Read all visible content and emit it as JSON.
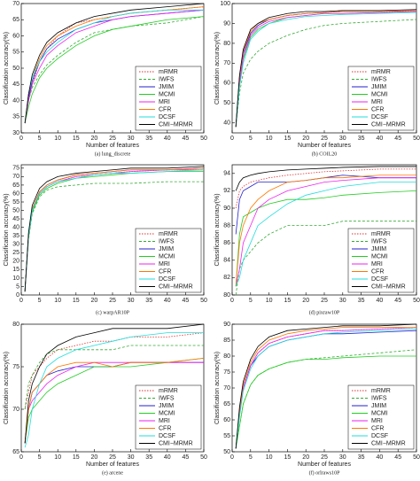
{
  "chart_data": [
    {
      "type": "line",
      "title": "(a) lung_discrete",
      "xlabel": "Number of features",
      "ylabel": "Classification accuracy(%)",
      "legend": "lower right",
      "x": [
        1,
        2,
        3,
        5,
        7,
        10,
        15,
        20,
        25,
        30,
        40,
        50
      ],
      "xlim": [
        0,
        50
      ],
      "xticks": [
        0,
        5,
        10,
        15,
        20,
        25,
        30,
        35,
        40,
        45,
        50
      ],
      "ylim": [
        30,
        70
      ],
      "yticks": [
        30,
        35,
        40,
        45,
        50,
        55,
        60,
        65,
        70
      ],
      "series": [
        {
          "name": "mRMR",
          "color": "#e03030",
          "values": [
            33,
            40,
            45,
            52,
            56,
            60,
            64,
            65,
            66,
            67,
            68,
            69
          ]
        },
        {
          "name": "IWFS",
          "color": "#33aa33",
          "values": [
            33,
            40,
            44,
            48,
            51,
            54,
            58,
            61,
            62,
            63,
            64,
            66
          ]
        },
        {
          "name": "JMIM",
          "color": "#2222cc",
          "values": [
            33,
            41,
            46,
            52,
            56,
            59,
            62,
            64,
            65,
            66,
            67,
            68
          ]
        },
        {
          "name": "MCMI",
          "color": "#22cc22",
          "values": [
            33,
            38,
            42,
            47,
            50,
            53,
            57,
            60,
            62,
            63,
            65,
            66
          ]
        },
        {
          "name": "MRI",
          "color": "#ee22ee",
          "values": [
            33,
            40,
            45,
            50,
            54,
            57,
            61,
            63,
            65,
            66,
            67,
            68
          ]
        },
        {
          "name": "CFR",
          "color": "#ff7700",
          "values": [
            33,
            42,
            47,
            53,
            57,
            60,
            63,
            65,
            66,
            67,
            68,
            69
          ]
        },
        {
          "name": "DCSF",
          "color": "#22dddd",
          "values": [
            33,
            42,
            47,
            52,
            55,
            58,
            62,
            64,
            66,
            67,
            68,
            68
          ]
        },
        {
          "name": "CMI−MRMR",
          "color": "#000000",
          "values": [
            33,
            42,
            48,
            54,
            58,
            61,
            64,
            66,
            67,
            68,
            69,
            70
          ]
        }
      ]
    },
    {
      "type": "line",
      "title": "(b) COIL20",
      "xlabel": "Number of features",
      "ylabel": "Classification accuracy(%)",
      "legend": "lower right",
      "x": [
        1,
        2,
        3,
        5,
        7,
        10,
        15,
        20,
        25,
        30,
        40,
        50
      ],
      "xlim": [
        0,
        50
      ],
      "xticks": [
        0,
        5,
        10,
        15,
        20,
        25,
        30,
        35,
        40,
        45,
        50
      ],
      "ylim": [
        35,
        100
      ],
      "yticks": [
        40,
        50,
        60,
        70,
        80,
        90,
        100
      ],
      "series": [
        {
          "name": "mRMR",
          "color": "#e03030",
          "values": [
            38,
            62,
            75,
            85,
            89,
            92,
            94,
            95,
            95.5,
            96,
            96,
            96
          ]
        },
        {
          "name": "IWFS",
          "color": "#33aa33",
          "values": [
            38,
            55,
            65,
            72,
            76,
            80,
            84,
            87,
            89,
            90,
            91,
            92
          ]
        },
        {
          "name": "JMIM",
          "color": "#2222cc",
          "values": [
            38,
            63,
            75,
            85,
            89,
            92,
            94,
            95,
            95.5,
            96,
            96,
            96.5
          ]
        },
        {
          "name": "MCMI",
          "color": "#22cc22",
          "values": [
            38,
            60,
            72,
            83,
            87,
            90,
            93,
            94,
            95,
            95,
            95.5,
            96
          ]
        },
        {
          "name": "MRI",
          "color": "#ee22ee",
          "values": [
            38,
            60,
            73,
            84,
            88,
            91,
            93,
            94,
            95,
            95,
            95.5,
            96
          ]
        },
        {
          "name": "CFR",
          "color": "#ff7700",
          "values": [
            38,
            63,
            76,
            86,
            90,
            92,
            94,
            95,
            95.5,
            96,
            96,
            96.5
          ]
        },
        {
          "name": "DCSF",
          "color": "#22dddd",
          "values": [
            38,
            58,
            70,
            82,
            86,
            90,
            92,
            93.5,
            94,
            94.5,
            95,
            95.5
          ]
        },
        {
          "name": "CMI−MRMR",
          "color": "#000000",
          "values": [
            38,
            64,
            77,
            87,
            90,
            93,
            95,
            96,
            96,
            96.5,
            96.5,
            97
          ]
        }
      ]
    },
    {
      "type": "line",
      "title": "(c) warpAR10P",
      "ylabel": "Classification accuracy(%)",
      "legend": "lower right",
      "x": [
        1,
        2,
        3,
        5,
        7,
        10,
        15,
        20,
        25,
        30,
        40,
        50
      ],
      "xlim": [
        0,
        50
      ],
      "xticks": [
        0,
        5,
        10,
        15,
        20,
        25,
        30,
        35,
        40,
        45,
        50
      ],
      "ylim": [
        0,
        77
      ],
      "yticks": [
        0,
        5,
        10,
        15,
        20,
        25,
        30,
        35,
        40,
        45,
        50,
        55,
        60,
        65,
        70,
        75
      ],
      "series": [
        {
          "name": "mRMR",
          "color": "#e03030",
          "values": [
            2,
            35,
            50,
            60,
            64,
            67,
            70,
            71,
            72,
            73,
            74,
            74
          ]
        },
        {
          "name": "IWFS",
          "color": "#33aa33",
          "values": [
            2,
            33,
            48,
            58,
            62,
            64,
            65,
            66,
            66,
            66,
            67,
            67
          ]
        },
        {
          "name": "JMIM",
          "color": "#2222cc",
          "values": [
            2,
            36,
            51,
            61,
            65,
            68,
            71,
            72,
            73,
            74,
            74,
            75
          ]
        },
        {
          "name": "MCMI",
          "color": "#22cc22",
          "values": [
            2,
            34,
            49,
            59,
            63,
            66,
            69,
            70,
            71,
            72,
            73,
            73
          ]
        },
        {
          "name": "MRI",
          "color": "#ee22ee",
          "values": [
            2,
            35,
            50,
            60,
            64,
            67,
            70,
            71,
            72,
            73,
            74,
            74
          ]
        },
        {
          "name": "CFR",
          "color": "#ff7700",
          "values": [
            2,
            36,
            51,
            61,
            65,
            68,
            71,
            72,
            73,
            74,
            74,
            75
          ]
        },
        {
          "name": "DCSF",
          "color": "#22dddd",
          "values": [
            2,
            35,
            50,
            60,
            64,
            67,
            69,
            71,
            72,
            72,
            73,
            74
          ]
        },
        {
          "name": "CMI−MRMR",
          "color": "#000000",
          "values": [
            2,
            37,
            53,
            63,
            67,
            70,
            72,
            73,
            74,
            75,
            75,
            76
          ]
        }
      ]
    },
    {
      "type": "line",
      "title": "(d) pixraw10P",
      "ylabel": "Classification accuracy(%)",
      "legend": "lower right",
      "x": [
        1,
        2,
        3,
        5,
        7,
        10,
        15,
        20,
        25,
        30,
        40,
        50
      ],
      "xlim": [
        0,
        50
      ],
      "xticks": [
        0,
        5,
        10,
        15,
        20,
        25,
        30,
        35,
        40,
        45,
        50
      ],
      "ylim": [
        80,
        95
      ],
      "yticks": [
        80,
        82,
        84,
        86,
        88,
        90,
        92,
        94
      ],
      "series": [
        {
          "name": "mRMR",
          "color": "#e03030",
          "values": [
            90,
            92,
            92.5,
            93,
            93.2,
            93.5,
            93.8,
            94,
            94.2,
            94.3,
            94.5,
            94.5
          ]
        },
        {
          "name": "IWFS",
          "color": "#33aa33",
          "values": [
            80,
            83,
            84,
            85,
            86,
            87,
            88,
            88,
            88,
            88.5,
            88.5,
            88.5
          ]
        },
        {
          "name": "JMIM",
          "color": "#2222cc",
          "values": [
            87,
            91,
            92,
            92.5,
            93,
            93,
            93,
            93.2,
            93.5,
            93.8,
            93.5,
            93.5
          ]
        },
        {
          "name": "MCMI",
          "color": "#22cc22",
          "values": [
            81,
            87,
            89,
            89.5,
            90,
            90.5,
            91,
            91,
            91.2,
            91.5,
            91.8,
            92
          ]
        },
        {
          "name": "MRI",
          "color": "#ee22ee",
          "values": [
            81,
            83,
            86,
            88,
            90,
            91,
            92,
            92.5,
            93,
            93.2,
            93.5,
            93.5
          ]
        },
        {
          "name": "CFR",
          "color": "#ff7700",
          "values": [
            81,
            86,
            88,
            90,
            91,
            92,
            93,
            93.2,
            93.5,
            93.5,
            93.8,
            93.8
          ]
        },
        {
          "name": "DCSF",
          "color": "#22dddd",
          "values": [
            81,
            82,
            84,
            86,
            88,
            89,
            90.5,
            91.5,
            92,
            92.5,
            93,
            93
          ]
        },
        {
          "name": "CMI−MRMR",
          "color": "#000000",
          "values": [
            92,
            93,
            93.5,
            93.8,
            94,
            94.2,
            94.4,
            94.5,
            94.6,
            94.7,
            94.8,
            94.8
          ]
        }
      ]
    },
    {
      "type": "line",
      "title": "(e) arcene",
      "xlabel": "Number of features",
      "ylabel": "Classification accuracy(%)",
      "legend": "lower right",
      "x": [
        1,
        2,
        3,
        5,
        7,
        10,
        15,
        20,
        25,
        30,
        40,
        50
      ],
      "xlim": [
        0,
        50
      ],
      "xticks": [
        0,
        5,
        10,
        15,
        20,
        25,
        30,
        35,
        40,
        45,
        50
      ],
      "ylim": [
        65,
        80
      ],
      "yticks": [
        65,
        70,
        75,
        80
      ],
      "series": [
        {
          "name": "mRMR",
          "color": "#e03030",
          "values": [
            70,
            72,
            74,
            75,
            76,
            77,
            77.5,
            78,
            78,
            78.5,
            78.5,
            79
          ]
        },
        {
          "name": "IWFS",
          "color": "#33aa33",
          "values": [
            70,
            73,
            74,
            75.5,
            76.5,
            77,
            77,
            77,
            77,
            77.5,
            77.5,
            77.5
          ]
        },
        {
          "name": "JMIM",
          "color": "#2222cc",
          "values": [
            66,
            70,
            72,
            73,
            74,
            74.5,
            75,
            75,
            75,
            75.5,
            75.5,
            75.5
          ]
        },
        {
          "name": "MCMI",
          "color": "#22cc22",
          "values": [
            66,
            69,
            70,
            71,
            72,
            73,
            74,
            75,
            75,
            75,
            75.5,
            76
          ]
        },
        {
          "name": "MRI",
          "color": "#ee22ee",
          "values": [
            66,
            70,
            71,
            72,
            73,
            74,
            75,
            75.5,
            75.5,
            75.5,
            75.5,
            75.5
          ]
        },
        {
          "name": "CFR",
          "color": "#ff7700",
          "values": [
            66,
            70,
            72,
            73,
            74,
            75,
            75.5,
            75.5,
            75,
            75.5,
            75.5,
            76
          ]
        },
        {
          "name": "DCSF",
          "color": "#22dddd",
          "values": [
            65.5,
            67,
            70,
            73,
            75,
            76,
            77,
            77.5,
            78,
            78.5,
            79,
            79
          ]
        },
        {
          "name": "CMI−MRMR",
          "color": "#000000",
          "values": [
            66,
            71,
            73,
            75,
            76.5,
            77.5,
            78.5,
            79,
            79.5,
            79.5,
            79.5,
            80
          ]
        }
      ]
    },
    {
      "type": "line",
      "title": "(f) orlraws10P",
      "xlabel": "Number of features",
      "ylabel": "Classification accuracy(%)",
      "legend": "lower right",
      "x": [
        1,
        2,
        3,
        5,
        7,
        10,
        15,
        20,
        25,
        30,
        40,
        50
      ],
      "xlim": [
        0,
        50
      ],
      "xticks": [
        0,
        5,
        10,
        15,
        20,
        25,
        30,
        35,
        40,
        45,
        50
      ],
      "ylim": [
        50,
        90
      ],
      "yticks": [
        50,
        55,
        60,
        65,
        70,
        75,
        80,
        85,
        90
      ],
      "series": [
        {
          "name": "mRMR",
          "color": "#e03030",
          "values": [
            51,
            62,
            70,
            77,
            81,
            84,
            86,
            87,
            88,
            88,
            88.5,
            89
          ]
        },
        {
          "name": "IWFS",
          "color": "#33aa33",
          "values": [
            51,
            58,
            65,
            71,
            74,
            76,
            78,
            79,
            79.5,
            80,
            81,
            82
          ]
        },
        {
          "name": "JMIM",
          "color": "#2222cc",
          "values": [
            51,
            62,
            70,
            77,
            80,
            83,
            85,
            86,
            87,
            87,
            87.5,
            88
          ]
        },
        {
          "name": "MCMI",
          "color": "#22cc22",
          "values": [
            51,
            58,
            65,
            71,
            74,
            76,
            78,
            79,
            79,
            79.5,
            80,
            80
          ]
        },
        {
          "name": "MRI",
          "color": "#ee22ee",
          "values": [
            51,
            62,
            70,
            77,
            81,
            84,
            86,
            87,
            88,
            88,
            88.5,
            89
          ]
        },
        {
          "name": "CFR",
          "color": "#ff7700",
          "values": [
            51,
            63,
            71,
            78,
            82,
            85,
            87,
            88,
            88.5,
            89,
            89,
            89
          ]
        },
        {
          "name": "DCSF",
          "color": "#22dddd",
          "values": [
            51,
            61,
            69,
            76,
            80,
            83,
            85,
            86,
            87,
            87.5,
            88,
            88.5
          ]
        },
        {
          "name": "CMI−MRMR",
          "color": "#000000",
          "values": [
            51,
            64,
            72,
            79,
            83,
            86,
            88,
            88.5,
            89,
            89.5,
            89.5,
            90
          ]
        }
      ]
    }
  ]
}
